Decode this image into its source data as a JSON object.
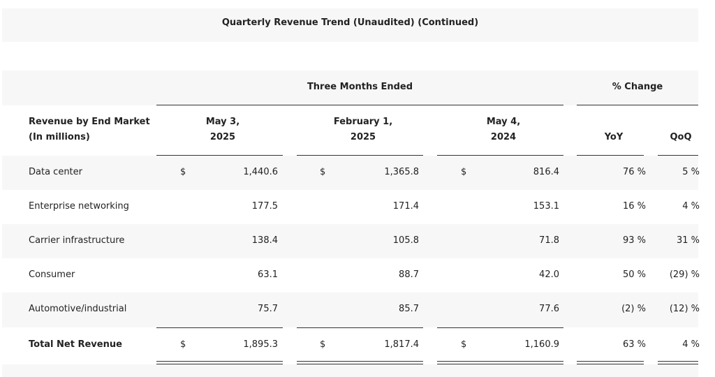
{
  "title": "Quarterly Revenue Trend (Unaudited) (Continued)",
  "group_headers": {
    "three_months": "Three Months Ended",
    "pct_change": "% Change"
  },
  "row_header": {
    "line1": "Revenue by End Market",
    "line2": "(In millions)"
  },
  "columns": {
    "c1": {
      "line1": "May 3,",
      "line2": "2025"
    },
    "c2": {
      "line1": "February 1,",
      "line2": "2025"
    },
    "c3": {
      "line1": "May 4,",
      "line2": "2024"
    },
    "yoy": "YoY",
    "qoq": "QoQ"
  },
  "rows": [
    {
      "label": "Data center",
      "c1_cur": "$",
      "c1": "1,440.6",
      "c2_cur": "$",
      "c2": "1,365.8",
      "c3_cur": "$",
      "c3": "816.4",
      "yoy": "76 %",
      "qoq": "5 %"
    },
    {
      "label": "Enterprise networking",
      "c1_cur": "",
      "c1": "177.5",
      "c2_cur": "",
      "c2": "171.4",
      "c3_cur": "",
      "c3": "153.1",
      "yoy": "16 %",
      "qoq": "4 %"
    },
    {
      "label": "Carrier infrastructure",
      "c1_cur": "",
      "c1": "138.4",
      "c2_cur": "",
      "c2": "105.8",
      "c3_cur": "",
      "c3": "71.8",
      "yoy": "93 %",
      "qoq": "31 %"
    },
    {
      "label": "Consumer",
      "c1_cur": "",
      "c1": "63.1",
      "c2_cur": "",
      "c2": "88.7",
      "c3_cur": "",
      "c3": "42.0",
      "yoy": "50 %",
      "qoq": "(29) %"
    },
    {
      "label": "Automotive/industrial",
      "c1_cur": "",
      "c1": "75.7",
      "c2_cur": "",
      "c2": "85.7",
      "c3_cur": "",
      "c3": "77.6",
      "yoy": "(2) %",
      "qoq": "(12) %"
    }
  ],
  "total": {
    "label": "Total Net Revenue",
    "c1_cur": "$",
    "c1": "1,895.3",
    "c2_cur": "$",
    "c2": "1,817.4",
    "c3_cur": "$",
    "c3": "1,160.9",
    "yoy": "63 %",
    "qoq": "4 %"
  }
}
